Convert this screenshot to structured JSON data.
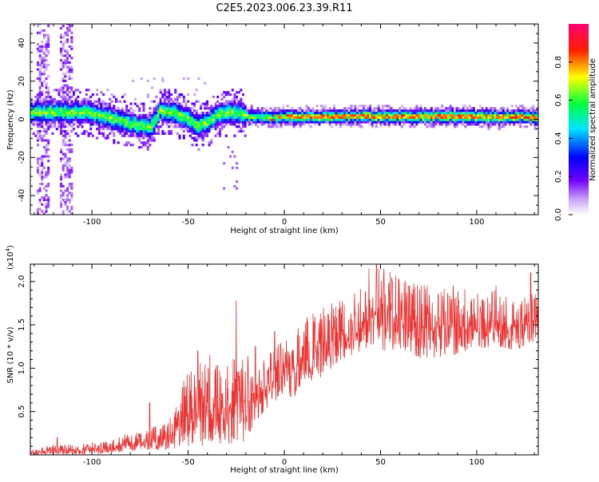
{
  "title": "C2E5.2023.006.23.39.R11",
  "chart_data": [
    {
      "type": "heatmap",
      "xlabel": "Height of straight line (km)",
      "ylabel": "Frequency (Hz)",
      "xlim": [
        -132,
        132
      ],
      "ylim": [
        -50,
        50
      ],
      "x_ticks": [
        -100,
        -50,
        0,
        50,
        100
      ],
      "y_ticks": [
        -40,
        -20,
        0,
        20,
        40
      ],
      "grid": false,
      "band_center_hz": [
        [
          -130,
          3
        ],
        [
          -115,
          3.5
        ],
        [
          -100,
          2.5
        ],
        [
          -90,
          0
        ],
        [
          -80,
          -3
        ],
        [
          -70,
          -5
        ],
        [
          -65,
          4
        ],
        [
          -55,
          2
        ],
        [
          -45,
          -4
        ],
        [
          -40,
          -2
        ],
        [
          -35,
          2
        ],
        [
          -25,
          3
        ],
        [
          -20,
          1
        ],
        [
          -10,
          0.5
        ],
        [
          0,
          0.5
        ],
        [
          10,
          1
        ],
        [
          30,
          1
        ],
        [
          50,
          1
        ],
        [
          70,
          1
        ],
        [
          90,
          1
        ],
        [
          110,
          0.5
        ],
        [
          130,
          0.5
        ]
      ],
      "colorbar": {
        "label": "Normalized spectral amplitude",
        "range": [
          0,
          1
        ],
        "ticks": [
          "0.0",
          "0.2",
          "0.4",
          "0.6",
          "0.8"
        ],
        "colormap": "rainbow (white → purple → blue → cyan → green → yellow → red → pink)"
      }
    },
    {
      "type": "line",
      "xlabel": "Height of straight line (km)",
      "ylabel": "SNR (10 * v/v)",
      "y_scale_label": "(x10",
      "y_scale_exponent": "4",
      "y_scale_suffix": ")",
      "xlim": [
        -132,
        132
      ],
      "ylim": [
        0,
        2.2
      ],
      "x_ticks": [
        -100,
        -50,
        0,
        50,
        100
      ],
      "y_tick_labels": [
        "0.5",
        "1.0",
        "1.5",
        "2.0"
      ],
      "grid": false,
      "series": [
        {
          "color": "#ee3333",
          "envelope_x": [
            -132,
            -120,
            -110,
            -100,
            -90,
            -80,
            -70,
            -60,
            -50,
            -40,
            -30,
            -20,
            -15,
            -10,
            -5,
            0,
            5,
            10,
            20,
            30,
            40,
            50,
            60,
            70,
            80,
            90,
            100,
            110,
            120,
            132
          ],
          "envelope_low": [
            0.0,
            0.0,
            0.0,
            0.01,
            0.02,
            0.04,
            0.05,
            0.06,
            0.08,
            0.1,
            0.12,
            0.15,
            0.35,
            0.5,
            0.6,
            0.6,
            0.65,
            0.8,
            0.9,
            1.1,
            1.2,
            1.2,
            1.2,
            1.1,
            1.1,
            1.15,
            1.2,
            1.25,
            1.2,
            1.3
          ],
          "envelope_high": [
            0.05,
            0.12,
            0.12,
            0.15,
            0.2,
            0.25,
            0.3,
            0.4,
            1.0,
            1.2,
            1.1,
            1.2,
            1.0,
            1.15,
            1.3,
            1.4,
            1.5,
            1.6,
            1.8,
            1.9,
            2.0,
            2.2,
            2.1,
            2.0,
            1.9,
            2.0,
            1.9,
            1.9,
            1.8,
            1.9
          ],
          "peaks": [
            [
              -25,
              1.78
            ],
            [
              -45,
              1.2
            ],
            [
              -70,
              0.6
            ],
            [
              -118,
              0.2
            ],
            [
              48,
              2.2
            ],
            [
              44,
              2.15
            ],
            [
              56,
              2.0
            ],
            [
              65,
              1.95
            ],
            [
              80,
              1.85
            ],
            [
              110,
              1.95
            ],
            [
              128,
              2.1
            ],
            [
              130,
              1.8
            ],
            [
              -5,
              1.42
            ],
            [
              -15,
              1.25
            ]
          ]
        }
      ]
    }
  ]
}
